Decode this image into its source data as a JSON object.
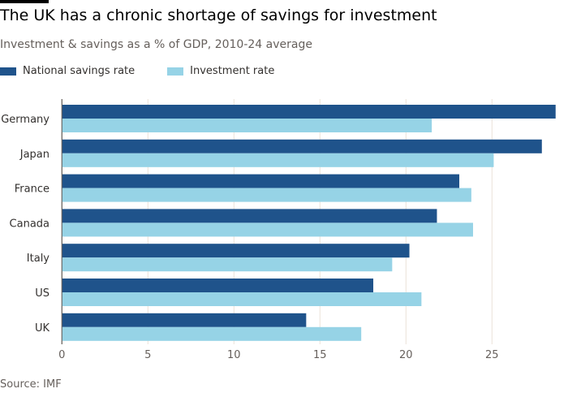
{
  "header": {
    "title": "The UK has a chronic shortage of savings for investment",
    "subtitle": "Investment & savings as a % of GDP, 2010-24 average"
  },
  "footer": {
    "source": "Source: IMF"
  },
  "chart_data": {
    "type": "bar",
    "orientation": "horizontal",
    "title": "The UK has a chronic shortage of savings for investment",
    "subtitle": "Investment & savings as a % of GDP, 2010-24 average",
    "categories": [
      "Germany",
      "Japan",
      "France",
      "Canada",
      "Italy",
      "US",
      "UK"
    ],
    "series": [
      {
        "name": "National savings rate",
        "color": "#1f538b",
        "values": [
          28.7,
          27.9,
          23.1,
          21.8,
          20.2,
          18.1,
          14.2
        ]
      },
      {
        "name": "Investment rate",
        "color": "#96d3e6",
        "values": [
          21.5,
          25.1,
          23.8,
          23.9,
          19.2,
          20.9,
          17.4
        ]
      }
    ],
    "xlim": [
      0,
      28.7
    ],
    "xticks": [
      0,
      5,
      10,
      15,
      20,
      25
    ],
    "grid": true,
    "legend": "top-left",
    "source": "Source: IMF"
  }
}
